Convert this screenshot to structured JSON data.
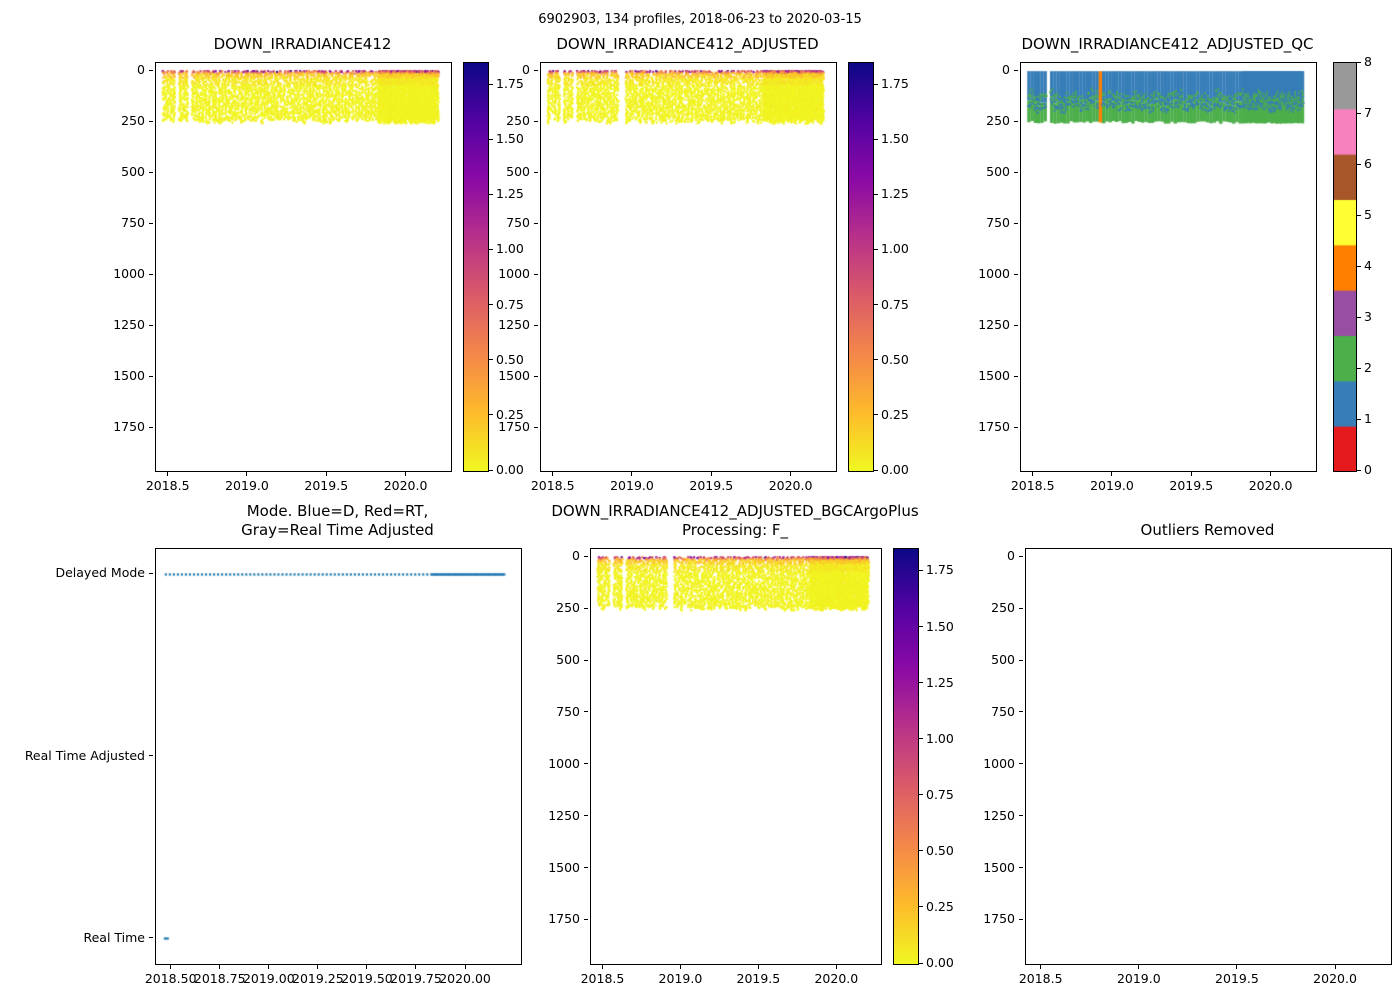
{
  "figure_title": "6902903, 134 profiles, 2018-06-23 to 2020-03-15",
  "profiles": {
    "count": 134,
    "time_start": 2018.47,
    "time_end": 2020.2,
    "sparse_spacing": 0.0205,
    "dense_from": 2019.82,
    "dense_spacing": 0.006
  },
  "colors": {
    "background": "#ffffff",
    "axis": "#000000",
    "mode_marker": "#1f77b4",
    "plasma_r_bottom_to_top": [
      "#f0f921",
      "#febc2b",
      "#f48849",
      "#db5c68",
      "#b93289",
      "#8b0aa5",
      "#5402a3",
      "#0d0887"
    ],
    "qc_colors_0_to_8": [
      "#e41a1c",
      "#377eb8",
      "#4daf4a",
      "#984ea3",
      "#ff7f00",
      "#ffff33",
      "#a65628",
      "#f781bf",
      "#999999"
    ]
  },
  "chart_data": [
    {
      "id": "down_irradiance412",
      "type": "scatter",
      "title": "DOWN_IRRADIANCE412",
      "render": "band",
      "grid": false,
      "xlim": [
        2018.42,
        2020.28
      ],
      "ylim": [
        -40,
        1960
      ],
      "x_ticks": [
        {
          "value": 2018.5,
          "label": "2018.5"
        },
        {
          "value": 2019.0,
          "label": "2019.0"
        },
        {
          "value": 2019.5,
          "label": "2019.5"
        },
        {
          "value": 2020.0,
          "label": "2020.0"
        }
      ],
      "y_ticks": [
        {
          "value": 0,
          "label": "0"
        },
        {
          "value": 250,
          "label": "250"
        },
        {
          "value": 500,
          "label": "500"
        },
        {
          "value": 750,
          "label": "750"
        },
        {
          "value": 1000,
          "label": "1000"
        },
        {
          "value": 1250,
          "label": "1250"
        },
        {
          "value": 1500,
          "label": "1500"
        },
        {
          "value": 1750,
          "label": "1750"
        }
      ],
      "colorbar": {
        "style": "plasma_r",
        "vmin": 0,
        "vmax": 1.85,
        "ticks": [
          {
            "value": 0.0,
            "label": "0.00"
          },
          {
            "value": 0.25,
            "label": "0.25"
          },
          {
            "value": 0.5,
            "label": "0.50"
          },
          {
            "value": 0.75,
            "label": "0.75"
          },
          {
            "value": 1.0,
            "label": "1.00"
          },
          {
            "value": 1.25,
            "label": "1.25"
          },
          {
            "value": 1.5,
            "label": "1.50"
          },
          {
            "value": 1.75,
            "label": "1.75"
          }
        ]
      },
      "band": {
        "depth_top": 0,
        "depth_bottom_range": [
          235,
          260
        ],
        "surface_value_range": [
          0.5,
          1.85
        ],
        "deep_value_range": [
          0,
          0.05
        ],
        "gap_times": [
          2018.55,
          2018.63
        ]
      }
    },
    {
      "id": "down_irradiance412_adjusted",
      "type": "scatter",
      "title": "DOWN_IRRADIANCE412_ADJUSTED",
      "render": "band",
      "grid": false,
      "xlim": [
        2018.42,
        2020.28
      ],
      "ylim": [
        -40,
        1960
      ],
      "x_ticks": [
        {
          "value": 2018.5,
          "label": "2018.5"
        },
        {
          "value": 2019.0,
          "label": "2019.0"
        },
        {
          "value": 2019.5,
          "label": "2019.5"
        },
        {
          "value": 2020.0,
          "label": "2020.0"
        }
      ],
      "y_ticks": [
        {
          "value": 0,
          "label": "0"
        },
        {
          "value": 250,
          "label": "250"
        },
        {
          "value": 500,
          "label": "500"
        },
        {
          "value": 750,
          "label": "750"
        },
        {
          "value": 1000,
          "label": "1000"
        },
        {
          "value": 1250,
          "label": "1250"
        },
        {
          "value": 1500,
          "label": "1500"
        },
        {
          "value": 1750,
          "label": "1750"
        }
      ],
      "colorbar": {
        "style": "plasma_r",
        "vmin": 0,
        "vmax": 1.85,
        "ticks": [
          {
            "value": 0.0,
            "label": "0.00"
          },
          {
            "value": 0.25,
            "label": "0.25"
          },
          {
            "value": 0.5,
            "label": "0.50"
          },
          {
            "value": 0.75,
            "label": "0.75"
          },
          {
            "value": 1.0,
            "label": "1.00"
          },
          {
            "value": 1.25,
            "label": "1.25"
          },
          {
            "value": 1.5,
            "label": "1.50"
          },
          {
            "value": 1.75,
            "label": "1.75"
          }
        ]
      },
      "band": {
        "depth_top": 0,
        "depth_bottom_range": [
          235,
          260
        ],
        "surface_value_range": [
          0.5,
          1.85
        ],
        "deep_value_range": [
          0,
          0.05
        ],
        "gap_times": [
          2018.55,
          2018.63,
          2018.93
        ]
      }
    },
    {
      "id": "down_irradiance412_adjusted_qc",
      "type": "heatmap",
      "title": "DOWN_IRRADIANCE412_ADJUSTED_QC",
      "render": "qc",
      "grid": false,
      "xlim": [
        2018.42,
        2020.28
      ],
      "ylim": [
        -40,
        1960
      ],
      "x_ticks": [
        {
          "value": 2018.5,
          "label": "2018.5"
        },
        {
          "value": 2019.0,
          "label": "2019.0"
        },
        {
          "value": 2019.5,
          "label": "2019.5"
        },
        {
          "value": 2020.0,
          "label": "2020.0"
        }
      ],
      "y_ticks": [
        {
          "value": 0,
          "label": "0"
        },
        {
          "value": 250,
          "label": "250"
        },
        {
          "value": 500,
          "label": "500"
        },
        {
          "value": 750,
          "label": "750"
        },
        {
          "value": 1000,
          "label": "1000"
        },
        {
          "value": 1250,
          "label": "1250"
        },
        {
          "value": 1500,
          "label": "1500"
        },
        {
          "value": 1750,
          "label": "1750"
        }
      ],
      "colorbar": {
        "style": "qc",
        "vmin": 0,
        "vmax": 8,
        "ticks": [
          {
            "value": 0,
            "label": "0"
          },
          {
            "value": 1,
            "label": "1"
          },
          {
            "value": 2,
            "label": "2"
          },
          {
            "value": 3,
            "label": "3"
          },
          {
            "value": 4,
            "label": "4"
          },
          {
            "value": 5,
            "label": "5"
          },
          {
            "value": 6,
            "label": "6"
          },
          {
            "value": 7,
            "label": "7"
          },
          {
            "value": 8,
            "label": "8"
          }
        ]
      },
      "qc_band": {
        "upper_qc_value": 1,
        "lower_qc_value": 2,
        "boundary_depth": 150,
        "band_bottom_depth": 250,
        "bad_column_time": 2018.93,
        "bad_column_qc_value": 4,
        "gap_times": [
          2018.6
        ]
      }
    },
    {
      "id": "mode",
      "type": "scatter",
      "title": "Mode. Blue=D, Red=RT,\nGray=Real Time Adjusted",
      "render": "mode",
      "grid": false,
      "xlim": [
        2018.42,
        2020.28
      ],
      "ylim": [
        2.14,
        -0.14
      ],
      "x_ticks": [
        {
          "value": 2018.5,
          "label": "2018.50"
        },
        {
          "value": 2018.75,
          "label": "2018.75"
        },
        {
          "value": 2019.0,
          "label": "2019.00"
        },
        {
          "value": 2019.25,
          "label": "2019.25"
        },
        {
          "value": 2019.5,
          "label": "2019.50"
        },
        {
          "value": 2019.75,
          "label": "2019.75"
        },
        {
          "value": 2020.0,
          "label": "2020.00"
        }
      ],
      "y_ticks": [
        {
          "value": 2,
          "label": "Delayed Mode"
        },
        {
          "value": 1,
          "label": "Real Time Adjusted"
        },
        {
          "value": 0,
          "label": "Real Time"
        }
      ],
      "colorbar": null,
      "mode": {
        "marker_color": "#1f77b4",
        "delayed_mode_value": 2,
        "delayed_mode_span": [
          2018.47,
          2020.2
        ],
        "real_time_times": [
          2018.47
        ]
      }
    },
    {
      "id": "down_irradiance412_adjusted_bgcargoplus",
      "type": "scatter",
      "title": "DOWN_IRRADIANCE412_ADJUSTED_BGCArgoPlus\nProcessing: F_",
      "render": "band",
      "grid": false,
      "xlim": [
        2018.42,
        2020.28
      ],
      "ylim": [
        -40,
        1960
      ],
      "x_ticks": [
        {
          "value": 2018.5,
          "label": "2018.5"
        },
        {
          "value": 2019.0,
          "label": "2019.0"
        },
        {
          "value": 2019.5,
          "label": "2019.5"
        },
        {
          "value": 2020.0,
          "label": "2020.0"
        }
      ],
      "y_ticks": [
        {
          "value": 0,
          "label": "0"
        },
        {
          "value": 250,
          "label": "250"
        },
        {
          "value": 500,
          "label": "500"
        },
        {
          "value": 750,
          "label": "750"
        },
        {
          "value": 1000,
          "label": "1000"
        },
        {
          "value": 1250,
          "label": "1250"
        },
        {
          "value": 1500,
          "label": "1500"
        },
        {
          "value": 1750,
          "label": "1750"
        }
      ],
      "colorbar": {
        "style": "plasma_r",
        "vmin": 0,
        "vmax": 1.85,
        "ticks": [
          {
            "value": 0.0,
            "label": "0.00"
          },
          {
            "value": 0.25,
            "label": "0.25"
          },
          {
            "value": 0.5,
            "label": "0.50"
          },
          {
            "value": 0.75,
            "label": "0.75"
          },
          {
            "value": 1.0,
            "label": "1.00"
          },
          {
            "value": 1.25,
            "label": "1.25"
          },
          {
            "value": 1.5,
            "label": "1.50"
          },
          {
            "value": 1.75,
            "label": "1.75"
          }
        ]
      },
      "band": {
        "depth_top": 0,
        "depth_bottom_range": [
          235,
          260
        ],
        "surface_value_range": [
          0.5,
          1.85
        ],
        "deep_value_range": [
          0,
          0.05
        ],
        "gap_times": [
          2018.55,
          2018.63,
          2018.93
        ]
      }
    },
    {
      "id": "outliers_removed",
      "type": "scatter",
      "title": "Outliers Removed",
      "render": "empty",
      "grid": false,
      "xlim": [
        2018.42,
        2020.28
      ],
      "ylim": [
        -40,
        1960
      ],
      "x_ticks": [
        {
          "value": 2018.5,
          "label": "2018.5"
        },
        {
          "value": 2019.0,
          "label": "2019.0"
        },
        {
          "value": 2019.5,
          "label": "2019.5"
        },
        {
          "value": 2020.0,
          "label": "2020.0"
        }
      ],
      "y_ticks": [
        {
          "value": 0,
          "label": "0"
        },
        {
          "value": 250,
          "label": "250"
        },
        {
          "value": 500,
          "label": "500"
        },
        {
          "value": 750,
          "label": "750"
        },
        {
          "value": 1000,
          "label": "1000"
        },
        {
          "value": 1250,
          "label": "1250"
        },
        {
          "value": 1500,
          "label": "1500"
        },
        {
          "value": 1750,
          "label": "1750"
        }
      ],
      "colorbar": null,
      "points": []
    }
  ]
}
